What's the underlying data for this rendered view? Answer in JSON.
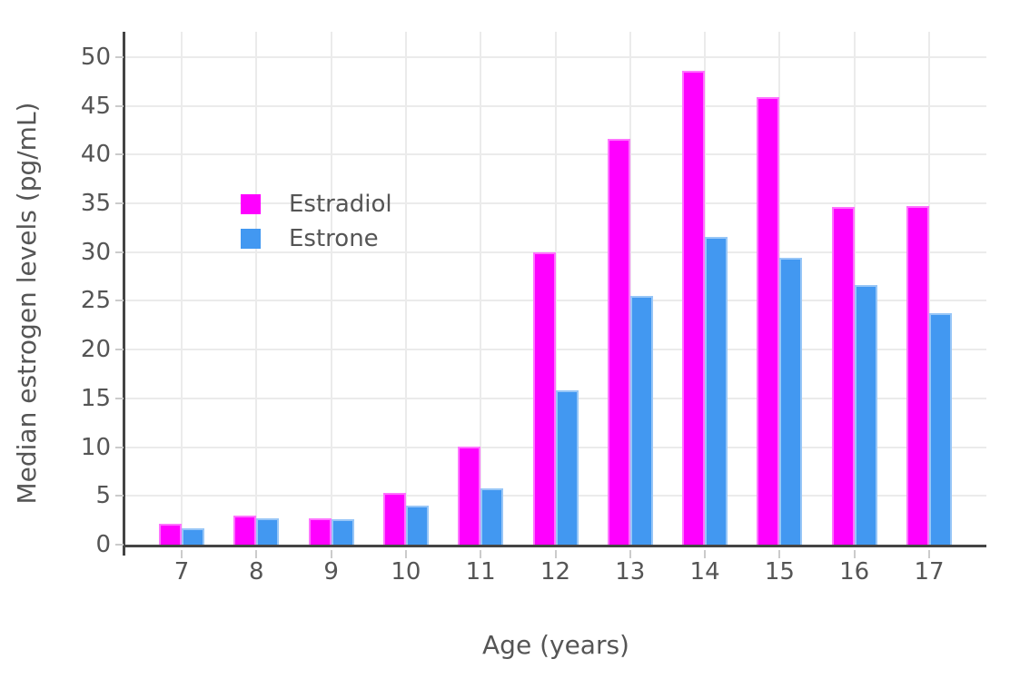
{
  "chart_data": {
    "type": "bar",
    "title": "",
    "xlabel": "Age (years)",
    "ylabel": "Median estrogen levels (pg/mL)",
    "categories": [
      "7",
      "8",
      "9",
      "10",
      "11",
      "12",
      "13",
      "14",
      "15",
      "16",
      "17"
    ],
    "series": [
      {
        "name": "Estradiol",
        "color": "#ff00ff",
        "values": [
          2.1,
          3.0,
          2.7,
          5.3,
          10.1,
          30.0,
          41.6,
          48.6,
          45.9,
          34.6,
          34.7
        ]
      },
      {
        "name": "Estrone",
        "color": "#4298f1",
        "values": [
          1.7,
          2.7,
          2.6,
          4.0,
          5.8,
          15.8,
          25.5,
          31.6,
          29.4,
          26.6,
          23.7
        ]
      }
    ],
    "yticks": [
      0,
      5,
      10,
      15,
      20,
      25,
      30,
      35,
      40,
      45,
      50
    ],
    "ylim": [
      0,
      52.6
    ],
    "grid": true,
    "legend_position": "inside-top-left"
  },
  "colors": {
    "background": "#ffffff",
    "grid": "#ebebeb",
    "axis_line": "#444444",
    "tick_mark": "#cbcbcb",
    "text": "#555555",
    "bar_edge": "rgba(255,255,255,0.45)"
  }
}
